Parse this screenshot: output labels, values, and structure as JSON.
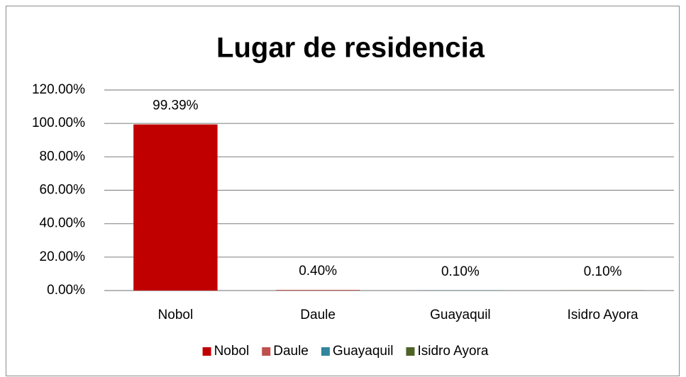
{
  "chart_data": {
    "type": "bar",
    "title": "Lugar de residencia",
    "categories": [
      "Nobol",
      "Daule",
      "Guayaquil",
      "Isidro Ayora"
    ],
    "values": [
      99.39,
      0.4,
      0.1,
      0.1
    ],
    "value_labels": [
      "99.39%",
      "0.40%",
      "0.10%",
      "0.10%"
    ],
    "colors": [
      "#c00000",
      "#c0504d",
      "#31859c",
      "#4f6228"
    ],
    "ylim": [
      0,
      120
    ],
    "yticks": [
      {
        "value": 0,
        "label": "0.00%"
      },
      {
        "value": 20,
        "label": "20.00%"
      },
      {
        "value": 40,
        "label": "40.00%"
      },
      {
        "value": 60,
        "label": "60.00%"
      },
      {
        "value": 80,
        "label": "80.00%"
      },
      {
        "value": 100,
        "label": "100.00%"
      },
      {
        "value": 120,
        "label": "120.00%"
      }
    ],
    "grid": true,
    "legend": "bottom"
  }
}
